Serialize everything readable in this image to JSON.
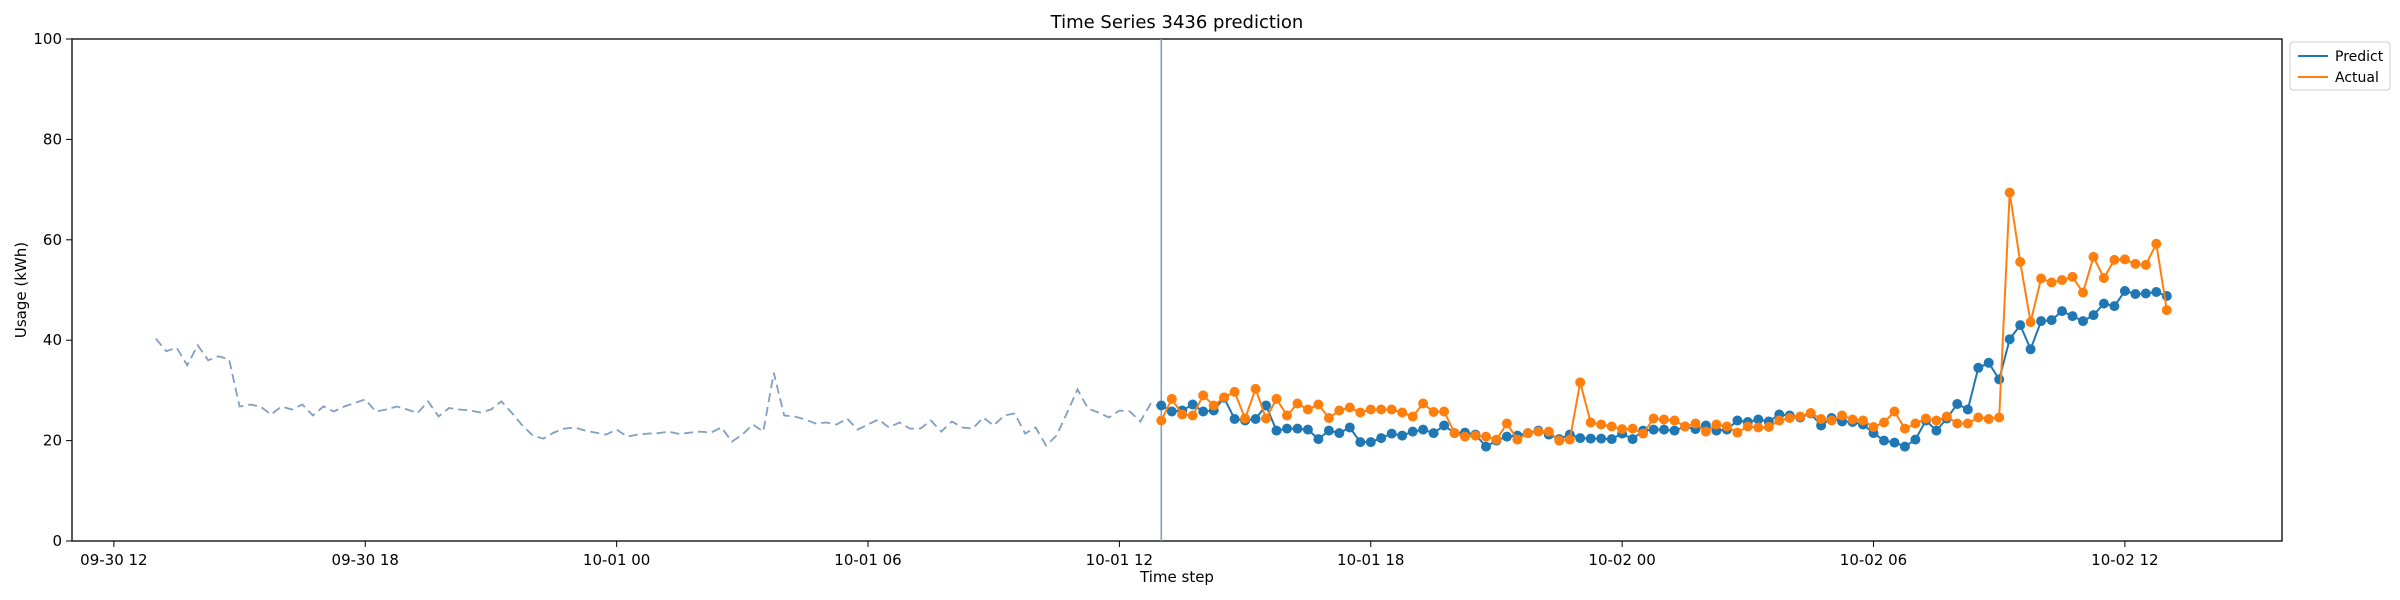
{
  "chart_data": {
    "type": "line",
    "title": "Time Series 3436 prediction",
    "xlabel": "Time step",
    "ylabel": "Usage (kWh)",
    "ylim": [
      0,
      100
    ],
    "y_ticks": [
      0,
      20,
      40,
      60,
      80,
      100
    ],
    "x_ticks": [
      {
        "t": "2024-09-30T12:00",
        "label": "09-30 12"
      },
      {
        "t": "2024-09-30T18:00",
        "label": "09-30 18"
      },
      {
        "t": "2024-10-01T00:00",
        "label": "10-01 00"
      },
      {
        "t": "2024-10-01T06:00",
        "label": "10-01 06"
      },
      {
        "t": "2024-10-01T12:00",
        "label": "10-01 12"
      },
      {
        "t": "2024-10-01T18:00",
        "label": "10-01 18"
      },
      {
        "t": "2024-10-02T00:00",
        "label": "10-02 00"
      },
      {
        "t": "2024-10-02T06:00",
        "label": "10-02 06"
      },
      {
        "t": "2024-10-02T12:00",
        "label": "10-02 12"
      }
    ],
    "xlim": [
      "2024-09-30T11:00",
      "2024-10-02T15:45"
    ],
    "forecast_start": "2024-10-01T13:00",
    "grid": false,
    "legend_position": "top-right",
    "history_dates": [
      "2024-09-30T13:00",
      "2024-09-30T13:15",
      "2024-09-30T13:30",
      "2024-09-30T13:45",
      "2024-09-30T14:00",
      "2024-09-30T14:15",
      "2024-09-30T14:30",
      "2024-09-30T14:45",
      "2024-09-30T15:00",
      "2024-09-30T15:15",
      "2024-09-30T15:30",
      "2024-09-30T15:45",
      "2024-09-30T16:00",
      "2024-09-30T16:15",
      "2024-09-30T16:30",
      "2024-09-30T16:45",
      "2024-09-30T17:00",
      "2024-09-30T17:15",
      "2024-09-30T17:30",
      "2024-09-30T17:45",
      "2024-09-30T18:00",
      "2024-09-30T18:15",
      "2024-09-30T18:30",
      "2024-09-30T18:45",
      "2024-09-30T19:00",
      "2024-09-30T19:15",
      "2024-09-30T19:30",
      "2024-09-30T19:45",
      "2024-09-30T20:00",
      "2024-09-30T20:15",
      "2024-09-30T20:30",
      "2024-09-30T20:45",
      "2024-09-30T21:00",
      "2024-09-30T21:15",
      "2024-09-30T21:30",
      "2024-09-30T21:45",
      "2024-09-30T22:00",
      "2024-09-30T22:15",
      "2024-09-30T22:30",
      "2024-09-30T22:45",
      "2024-09-30T23:00",
      "2024-09-30T23:15",
      "2024-09-30T23:30",
      "2024-09-30T23:45",
      "2024-10-01T00:00",
      "2024-10-01T00:15",
      "2024-10-01T00:30",
      "2024-10-01T00:45",
      "2024-10-01T01:00",
      "2024-10-01T01:15",
      "2024-10-01T01:30",
      "2024-10-01T01:45",
      "2024-10-01T02:00",
      "2024-10-01T02:15",
      "2024-10-01T02:30",
      "2024-10-01T02:45",
      "2024-10-01T03:00",
      "2024-10-01T03:15",
      "2024-10-01T03:30",
      "2024-10-01T03:45",
      "2024-10-01T04:00",
      "2024-10-01T04:15",
      "2024-10-01T04:30",
      "2024-10-01T04:45",
      "2024-10-01T05:00",
      "2024-10-01T05:15",
      "2024-10-01T05:30",
      "2024-10-01T05:45",
      "2024-10-01T06:00",
      "2024-10-01T06:15",
      "2024-10-01T06:30",
      "2024-10-01T06:45",
      "2024-10-01T07:00",
      "2024-10-01T07:15",
      "2024-10-01T07:30",
      "2024-10-01T07:45",
      "2024-10-01T08:00",
      "2024-10-01T08:15",
      "2024-10-01T08:30",
      "2024-10-01T08:45",
      "2024-10-01T09:00",
      "2024-10-01T09:15",
      "2024-10-01T09:30",
      "2024-10-01T09:45",
      "2024-10-01T10:00",
      "2024-10-01T10:15",
      "2024-10-01T10:30",
      "2024-10-01T10:45",
      "2024-10-01T11:00",
      "2024-10-01T11:15",
      "2024-10-01T11:30",
      "2024-10-01T11:45",
      "2024-10-01T12:00",
      "2024-10-01T12:15",
      "2024-10-01T12:30",
      "2024-10-01T12:45",
      "2024-10-01T13:00"
    ],
    "history": [
      40.3,
      37.8,
      38.5,
      35.0,
      39.0,
      36.0,
      36.8,
      36.2,
      26.8,
      27.2,
      26.8,
      25.2,
      26.8,
      26.2,
      27.2,
      25.0,
      26.8,
      25.8,
      26.8,
      27.5,
      28.2,
      25.8,
      26.2,
      26.8,
      26.2,
      25.5,
      27.8,
      24.8,
      26.5,
      26.2,
      26.0,
      25.6,
      26.2,
      27.8,
      25.5,
      23.0,
      21.0,
      20.4,
      21.6,
      22.4,
      22.6,
      22.0,
      21.6,
      21.2,
      22.2,
      20.8,
      21.2,
      21.4,
      21.5,
      21.8,
      21.3,
      21.6,
      21.8,
      21.6,
      22.6,
      19.8,
      21.2,
      23.2,
      21.8,
      33.5,
      25.0,
      24.8,
      24.2,
      23.4,
      23.6,
      23.2,
      24.4,
      22.2,
      23.2,
      24.2,
      22.6,
      23.6,
      22.4,
      22.4,
      24.0,
      21.8,
      23.8,
      22.6,
      22.4,
      24.6,
      23.0,
      25.0,
      25.4,
      21.4,
      22.6,
      19.0,
      21.0,
      25.5,
      30.2,
      26.4,
      25.6,
      24.6,
      26.0,
      25.8,
      23.8,
      27.4,
      26.8
    ],
    "forecast_dates": [
      "2024-10-01T13:00",
      "2024-10-01T13:15",
      "2024-10-01T13:30",
      "2024-10-01T13:45",
      "2024-10-01T14:00",
      "2024-10-01T14:15",
      "2024-10-01T14:30",
      "2024-10-01T14:45",
      "2024-10-01T15:00",
      "2024-10-01T15:15",
      "2024-10-01T15:30",
      "2024-10-01T15:45",
      "2024-10-01T16:00",
      "2024-10-01T16:15",
      "2024-10-01T16:30",
      "2024-10-01T16:45",
      "2024-10-01T17:00",
      "2024-10-01T17:15",
      "2024-10-01T17:30",
      "2024-10-01T17:45",
      "2024-10-01T18:00",
      "2024-10-01T18:15",
      "2024-10-01T18:30",
      "2024-10-01T18:45",
      "2024-10-01T19:00",
      "2024-10-01T19:15",
      "2024-10-01T19:30",
      "2024-10-01T19:45",
      "2024-10-01T20:00",
      "2024-10-01T20:15",
      "2024-10-01T20:30",
      "2024-10-01T20:45",
      "2024-10-01T21:00",
      "2024-10-01T21:15",
      "2024-10-01T21:30",
      "2024-10-01T21:45",
      "2024-10-01T22:00",
      "2024-10-01T22:15",
      "2024-10-01T22:30",
      "2024-10-01T22:45",
      "2024-10-01T23:00",
      "2024-10-01T23:15",
      "2024-10-01T23:30",
      "2024-10-01T23:45",
      "2024-10-02T00:00",
      "2024-10-02T00:15",
      "2024-10-02T00:30",
      "2024-10-02T00:45",
      "2024-10-02T01:00",
      "2024-10-02T01:15",
      "2024-10-02T01:30",
      "2024-10-02T01:45",
      "2024-10-02T02:00",
      "2024-10-02T02:15",
      "2024-10-02T02:30",
      "2024-10-02T02:45",
      "2024-10-02T03:00",
      "2024-10-02T03:15",
      "2024-10-02T03:30",
      "2024-10-02T03:45",
      "2024-10-02T04:00",
      "2024-10-02T04:15",
      "2024-10-02T04:30",
      "2024-10-02T04:45",
      "2024-10-02T05:00",
      "2024-10-02T05:15",
      "2024-10-02T05:30",
      "2024-10-02T05:45",
      "2024-10-02T06:00",
      "2024-10-02T06:15",
      "2024-10-02T06:30",
      "2024-10-02T06:45",
      "2024-10-02T07:00",
      "2024-10-02T07:15",
      "2024-10-02T07:30",
      "2024-10-02T07:45",
      "2024-10-02T08:00",
      "2024-10-02T08:15",
      "2024-10-02T08:30",
      "2024-10-02T08:45",
      "2024-10-02T09:00",
      "2024-10-02T09:15",
      "2024-10-02T09:30",
      "2024-10-02T09:45",
      "2024-10-02T10:00",
      "2024-10-02T10:15",
      "2024-10-02T10:30",
      "2024-10-02T10:45",
      "2024-10-02T11:00",
      "2024-10-02T11:15",
      "2024-10-02T11:30",
      "2024-10-02T11:45",
      "2024-10-02T12:00",
      "2024-10-02T12:15",
      "2024-10-02T12:30",
      "2024-10-02T12:45",
      "2024-10-02T13:00"
    ],
    "series": [
      {
        "name": "Predict",
        "color": "#1f77b4",
        "values": [
          27.0,
          25.8,
          26.0,
          27.2,
          25.8,
          26.0,
          28.5,
          24.3,
          24.0,
          24.3,
          27.0,
          22.0,
          22.4,
          22.4,
          22.2,
          20.3,
          22.0,
          21.5,
          22.6,
          19.7,
          19.7,
          20.5,
          21.4,
          21.0,
          21.8,
          22.2,
          21.5,
          23.0,
          21.5,
          21.6,
          21.2,
          18.8,
          20.0,
          20.8,
          21.0,
          21.5,
          22.0,
          21.2,
          20.3,
          21.2,
          20.5,
          20.4,
          20.4,
          20.3,
          21.4,
          20.3,
          22.0,
          22.2,
          22.2,
          22.0,
          22.8,
          22.3,
          23.0,
          22.0,
          22.2,
          24.0,
          23.7,
          24.2,
          23.8,
          25.2,
          25.0,
          24.6,
          25.4,
          23.0,
          24.5,
          23.8,
          23.7,
          23.2,
          21.5,
          20.0,
          19.6,
          18.8,
          20.2,
          24.0,
          22.0,
          24.4,
          27.3,
          26.2,
          34.5,
          35.5,
          32.2,
          40.2,
          43.0,
          38.2,
          43.8,
          44.0,
          45.8,
          44.8,
          43.8,
          45.0,
          47.3,
          46.8,
          49.8,
          49.2,
          49.3,
          49.6,
          48.8
        ]
      },
      {
        "name": "Actual",
        "color": "#ff7f0e",
        "values": [
          24.0,
          28.3,
          25.2,
          25.0,
          29.0,
          27.0,
          28.6,
          29.7,
          24.4,
          30.3,
          24.4,
          28.3,
          25.0,
          27.4,
          26.2,
          27.2,
          24.5,
          26.0,
          26.6,
          25.6,
          26.2,
          26.2,
          26.2,
          25.6,
          24.8,
          27.4,
          25.7,
          25.8,
          21.5,
          20.8,
          21.0,
          20.8,
          20.2,
          23.4,
          20.2,
          21.5,
          21.8,
          21.8,
          20.0,
          20.2,
          31.6,
          23.6,
          23.2,
          22.8,
          22.3,
          22.4,
          21.4,
          24.4,
          24.2,
          24.0,
          22.8,
          23.4,
          21.8,
          23.2,
          22.8,
          21.6,
          22.8,
          22.6,
          22.7,
          24.0,
          24.5,
          24.8,
          25.5,
          24.3,
          24.0,
          25.0,
          24.2,
          24.0,
          22.7,
          23.6,
          25.8,
          22.4,
          23.4,
          24.4,
          24.0,
          24.8,
          23.4,
          23.4,
          24.6,
          24.3,
          24.6,
          69.4,
          55.6,
          43.6,
          52.3,
          51.5,
          52.0,
          52.6,
          49.5,
          56.6,
          52.4,
          56.0,
          56.1,
          55.2,
          55.0,
          59.2,
          46.0
        ]
      }
    ]
  }
}
